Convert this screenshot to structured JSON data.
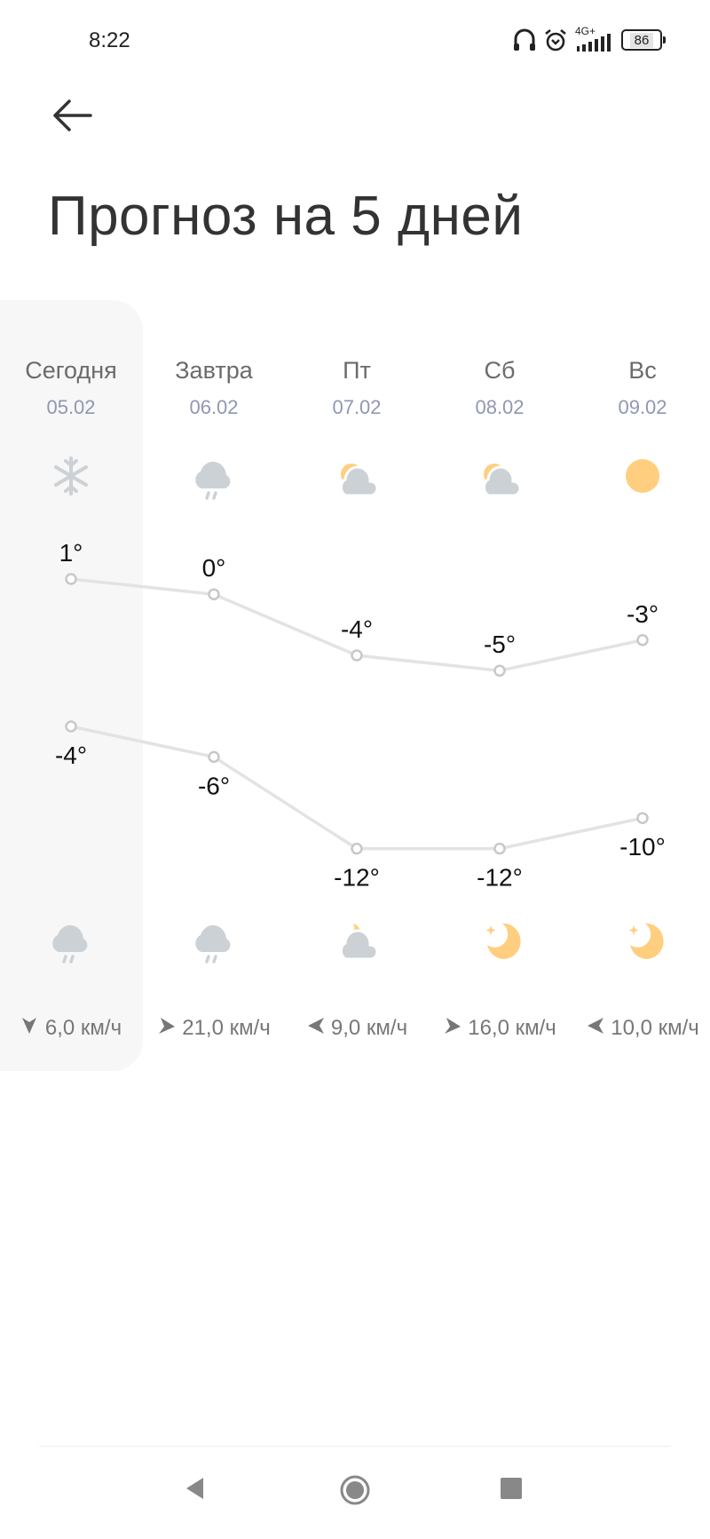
{
  "status_bar": {
    "time": "8:22",
    "network": "4G+",
    "battery": "86",
    "icons": [
      "headphones-icon",
      "alarm-icon",
      "signal-icon",
      "battery-icon"
    ]
  },
  "header": {
    "back_icon": "arrow-left-icon",
    "title": "Прогноз на 5 дней"
  },
  "colors": {
    "line": "#e3e3e3",
    "sun": "#ffcf7f",
    "cloud": "#cbd1d5",
    "date": "#8f97b3",
    "today_bg": "#f7f7f7"
  },
  "days": [
    {
      "name": "Сегодня",
      "date": "05.02",
      "day_icon": "snowflake-icon",
      "high": "1°",
      "high_value": 1,
      "low": "-4°",
      "low_value": -4,
      "night_icon": "cloud-rain-icon",
      "wind_dir": "down",
      "wind": "6,0 км/ч"
    },
    {
      "name": "Завтра",
      "date": "06.02",
      "day_icon": "cloud-rain-icon",
      "high": "0°",
      "high_value": 0,
      "low": "-6°",
      "low_value": -6,
      "night_icon": "cloud-rain-icon",
      "wind_dir": "right-up",
      "wind": "21,0 км/ч"
    },
    {
      "name": "Пт",
      "date": "07.02",
      "day_icon": "sun-cloud-icon",
      "high": "-4°",
      "high_value": -4,
      "low": "-12°",
      "low_value": -12,
      "night_icon": "moon-cloud-icon",
      "wind_dir": "left",
      "wind": "9,0 км/ч"
    },
    {
      "name": "Сб",
      "date": "08.02",
      "day_icon": "sun-cloud-icon",
      "high": "-5°",
      "high_value": -5,
      "low": "-12°",
      "low_value": -12,
      "night_icon": "moon-icon",
      "wind_dir": "right-up",
      "wind": "16,0 км/ч"
    },
    {
      "name": "Вс",
      "date": "09.02",
      "day_icon": "sun-icon",
      "high": "-3°",
      "high_value": -3,
      "low": "-10°",
      "low_value": -10,
      "night_icon": "moon-icon",
      "wind_dir": "left",
      "wind": "10,0 км/ч"
    }
  ],
  "nav": {
    "back": "nav-back-icon",
    "home": "nav-home-icon",
    "recents": "nav-recents-icon"
  }
}
